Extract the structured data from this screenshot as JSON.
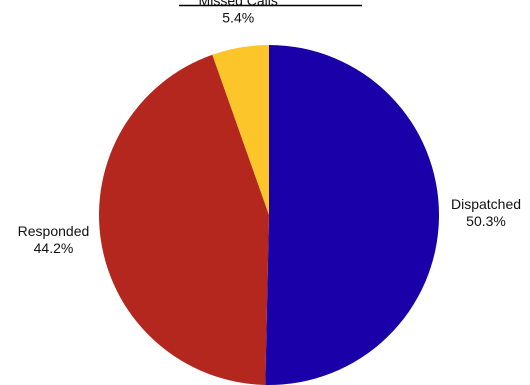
{
  "chart_data": {
    "type": "pie",
    "categories": [
      "Dispatched",
      "Responded",
      "Missed Calls"
    ],
    "values": [
      50.3,
      44.2,
      5.4
    ],
    "percent_labels": [
      "50.3%",
      "44.2%",
      "5.4%"
    ],
    "colors": [
      "#1a00a8",
      "#b3271f",
      "#fcc62a"
    ],
    "start_angle_deg": 0,
    "direction": "clockwise",
    "legend": "none"
  }
}
